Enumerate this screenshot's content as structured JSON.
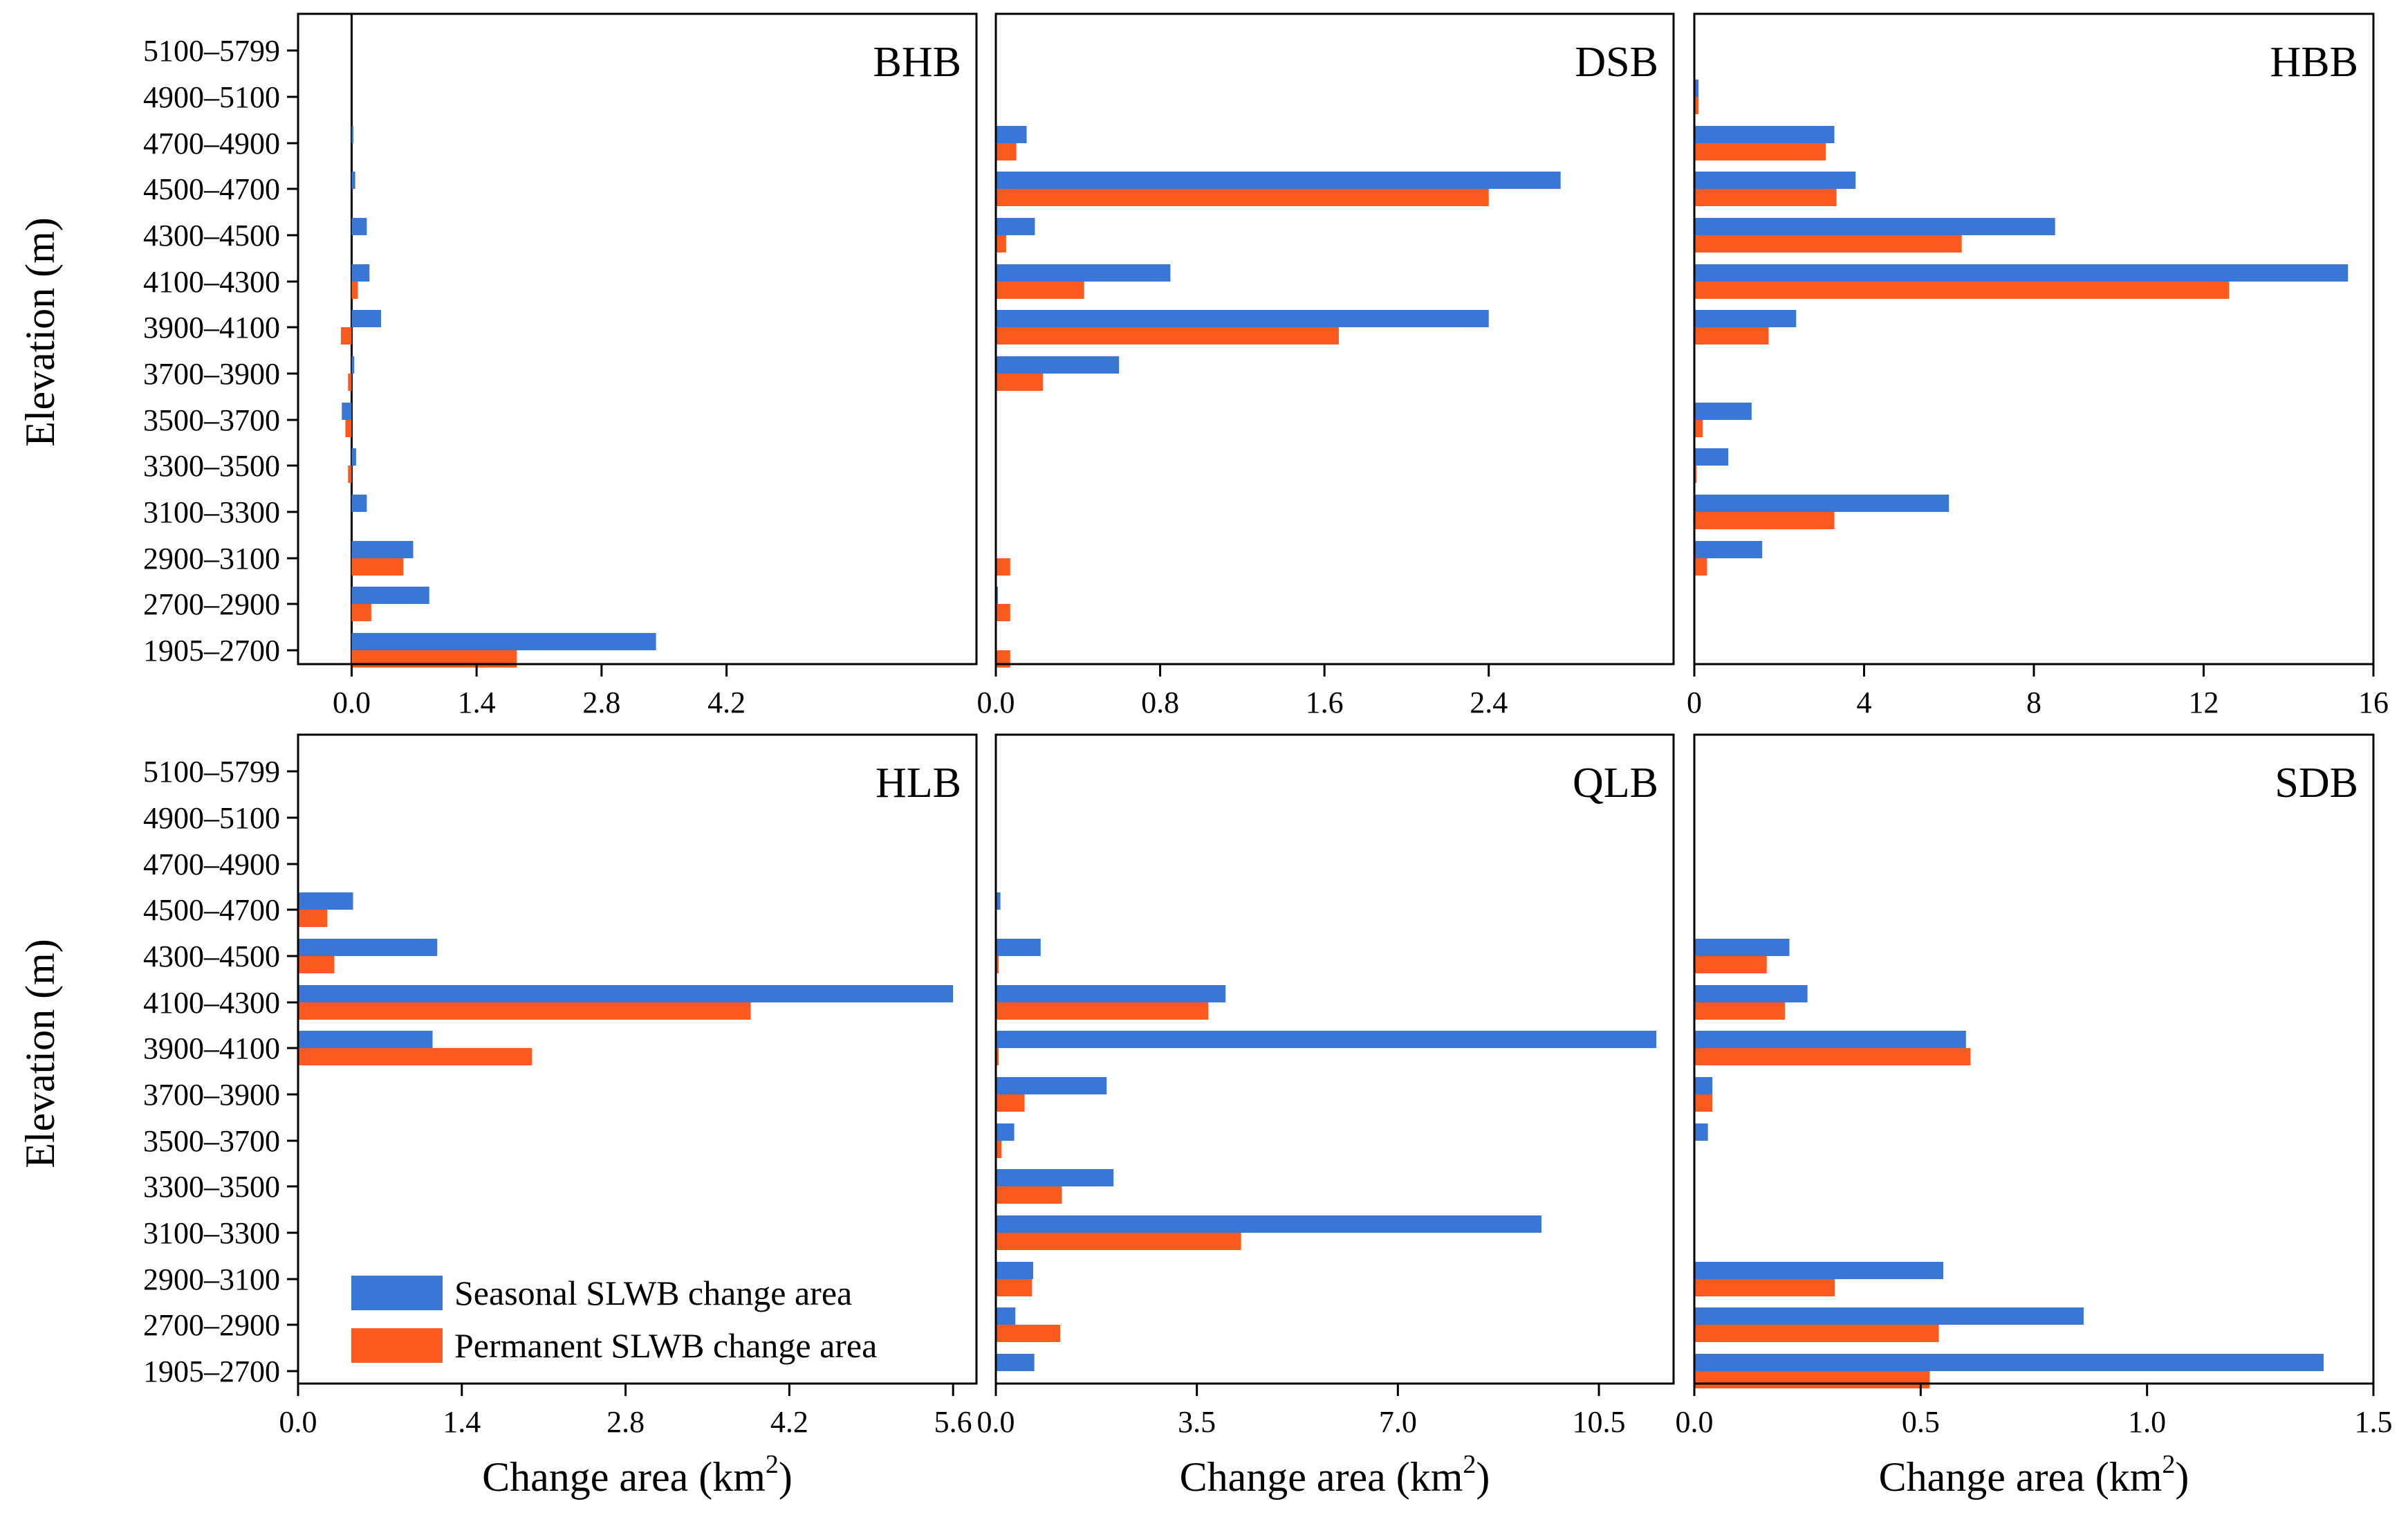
{
  "figure": {
    "y_axis_title": "Elevation (m)",
    "x_axis_title_base": "Change area (km",
    "x_axis_title_sup": "2",
    "x_axis_title_end": ")"
  },
  "legend": {
    "seasonal": "Seasonal SLWB change area",
    "permanent": "Permanent SLWB change area"
  },
  "colors": {
    "seasonal": "#3a76d6",
    "permanent": "#fa5a1e"
  },
  "chart_data": {
    "type": "bar",
    "orientation": "horizontal",
    "categories": [
      "1905–2700",
      "2700–2900",
      "2900–3100",
      "3100–3300",
      "3300–3500",
      "3500–3700",
      "3700–3900",
      "3900–4100",
      "4100–4300",
      "4300–4500",
      "4500–4700",
      "4700–4900",
      "4900–5100",
      "5100–5799"
    ],
    "series_names": [
      "Seasonal SLWB change area",
      "Permanent SLWB change area"
    ],
    "panels": [
      {
        "title": "BHB",
        "xlim": [
          -0.6,
          7.0
        ],
        "xticks": [
          0.0,
          1.4,
          2.8,
          4.2
        ],
        "tick_labels": [
          "0.0",
          "1.4",
          "2.8",
          "4.2"
        ],
        "seasonal": [
          3.41,
          0.87,
          0.69,
          0.17,
          0.05,
          -0.11,
          0.03,
          0.33,
          0.2,
          0.17,
          0.04,
          0.02,
          0,
          0
        ],
        "permanent": [
          1.85,
          0.22,
          0.58,
          0,
          -0.04,
          -0.07,
          -0.04,
          -0.12,
          0.07,
          0,
          0,
          0,
          0,
          0
        ]
      },
      {
        "title": "DSB",
        "xlim": [
          0,
          3.3
        ],
        "xticks": [
          0.0,
          0.8,
          1.6,
          2.4
        ],
        "tick_labels": [
          "0.0",
          "0.8",
          "1.6",
          "2.4"
        ],
        "seasonal": [
          0,
          0.01,
          0,
          0,
          0,
          0,
          0.6,
          2.4,
          0.85,
          0.19,
          2.75,
          0.15,
          0,
          0
        ],
        "permanent": [
          0.07,
          0.07,
          0.07,
          0,
          0,
          0,
          0.23,
          1.67,
          0.43,
          0.05,
          2.4,
          0.1,
          0,
          0
        ]
      },
      {
        "title": "HBB",
        "xlim": [
          0,
          16
        ],
        "xticks": [
          0,
          4,
          8,
          12,
          16
        ],
        "tick_labels": [
          "0",
          "4",
          "8",
          "12",
          "16"
        ],
        "seasonal": [
          0,
          0,
          1.6,
          6.0,
          0.8,
          1.35,
          0,
          2.4,
          15.4,
          8.5,
          3.8,
          3.3,
          0.1,
          0
        ],
        "permanent": [
          0,
          0,
          0.3,
          3.3,
          0.05,
          0.2,
          0,
          1.75,
          12.6,
          6.3,
          3.35,
          3.1,
          0.1,
          0
        ]
      },
      {
        "title": "HLB",
        "xlim": [
          0,
          5.8
        ],
        "xticks": [
          0.0,
          1.4,
          2.8,
          4.2,
          5.6
        ],
        "tick_labels": [
          "0.0",
          "1.4",
          "2.8",
          "4.2",
          "5.6"
        ],
        "seasonal": [
          0,
          0,
          0,
          0,
          0,
          0,
          0,
          1.15,
          5.6,
          1.19,
          0.47,
          0,
          0,
          0
        ],
        "permanent": [
          0,
          0,
          0,
          0,
          0,
          0,
          0,
          2.0,
          3.87,
          0.31,
          0.25,
          0,
          0,
          0
        ]
      },
      {
        "title": "QLB",
        "xlim": [
          0,
          11.8
        ],
        "xticks": [
          0.0,
          3.5,
          7.0,
          10.5
        ],
        "tick_labels": [
          "0.0",
          "3.5",
          "7.0",
          "10.5"
        ],
        "seasonal": [
          0.67,
          0.34,
          0.65,
          9.5,
          2.05,
          0.32,
          1.93,
          11.5,
          4.0,
          0.78,
          0.08,
          0,
          0,
          0
        ],
        "permanent": [
          0,
          1.12,
          0.63,
          4.27,
          1.15,
          0.1,
          0.5,
          0.05,
          3.7,
          0.05,
          0,
          0,
          0,
          0
        ]
      },
      {
        "title": "SDB",
        "xlim": [
          0,
          1.5
        ],
        "xticks": [
          0.0,
          0.5,
          1.0,
          1.5
        ],
        "tick_labels": [
          "0.0",
          "0.5",
          "1.0",
          "1.5"
        ],
        "seasonal": [
          1.39,
          0.86,
          0.55,
          0,
          0,
          0.03,
          0.04,
          0.6,
          0.25,
          0.21,
          0,
          0,
          0,
          0
        ],
        "permanent": [
          0.52,
          0.54,
          0.31,
          0,
          0,
          0,
          0.04,
          0.61,
          0.2,
          0.16,
          0,
          0,
          0,
          0
        ]
      }
    ]
  }
}
